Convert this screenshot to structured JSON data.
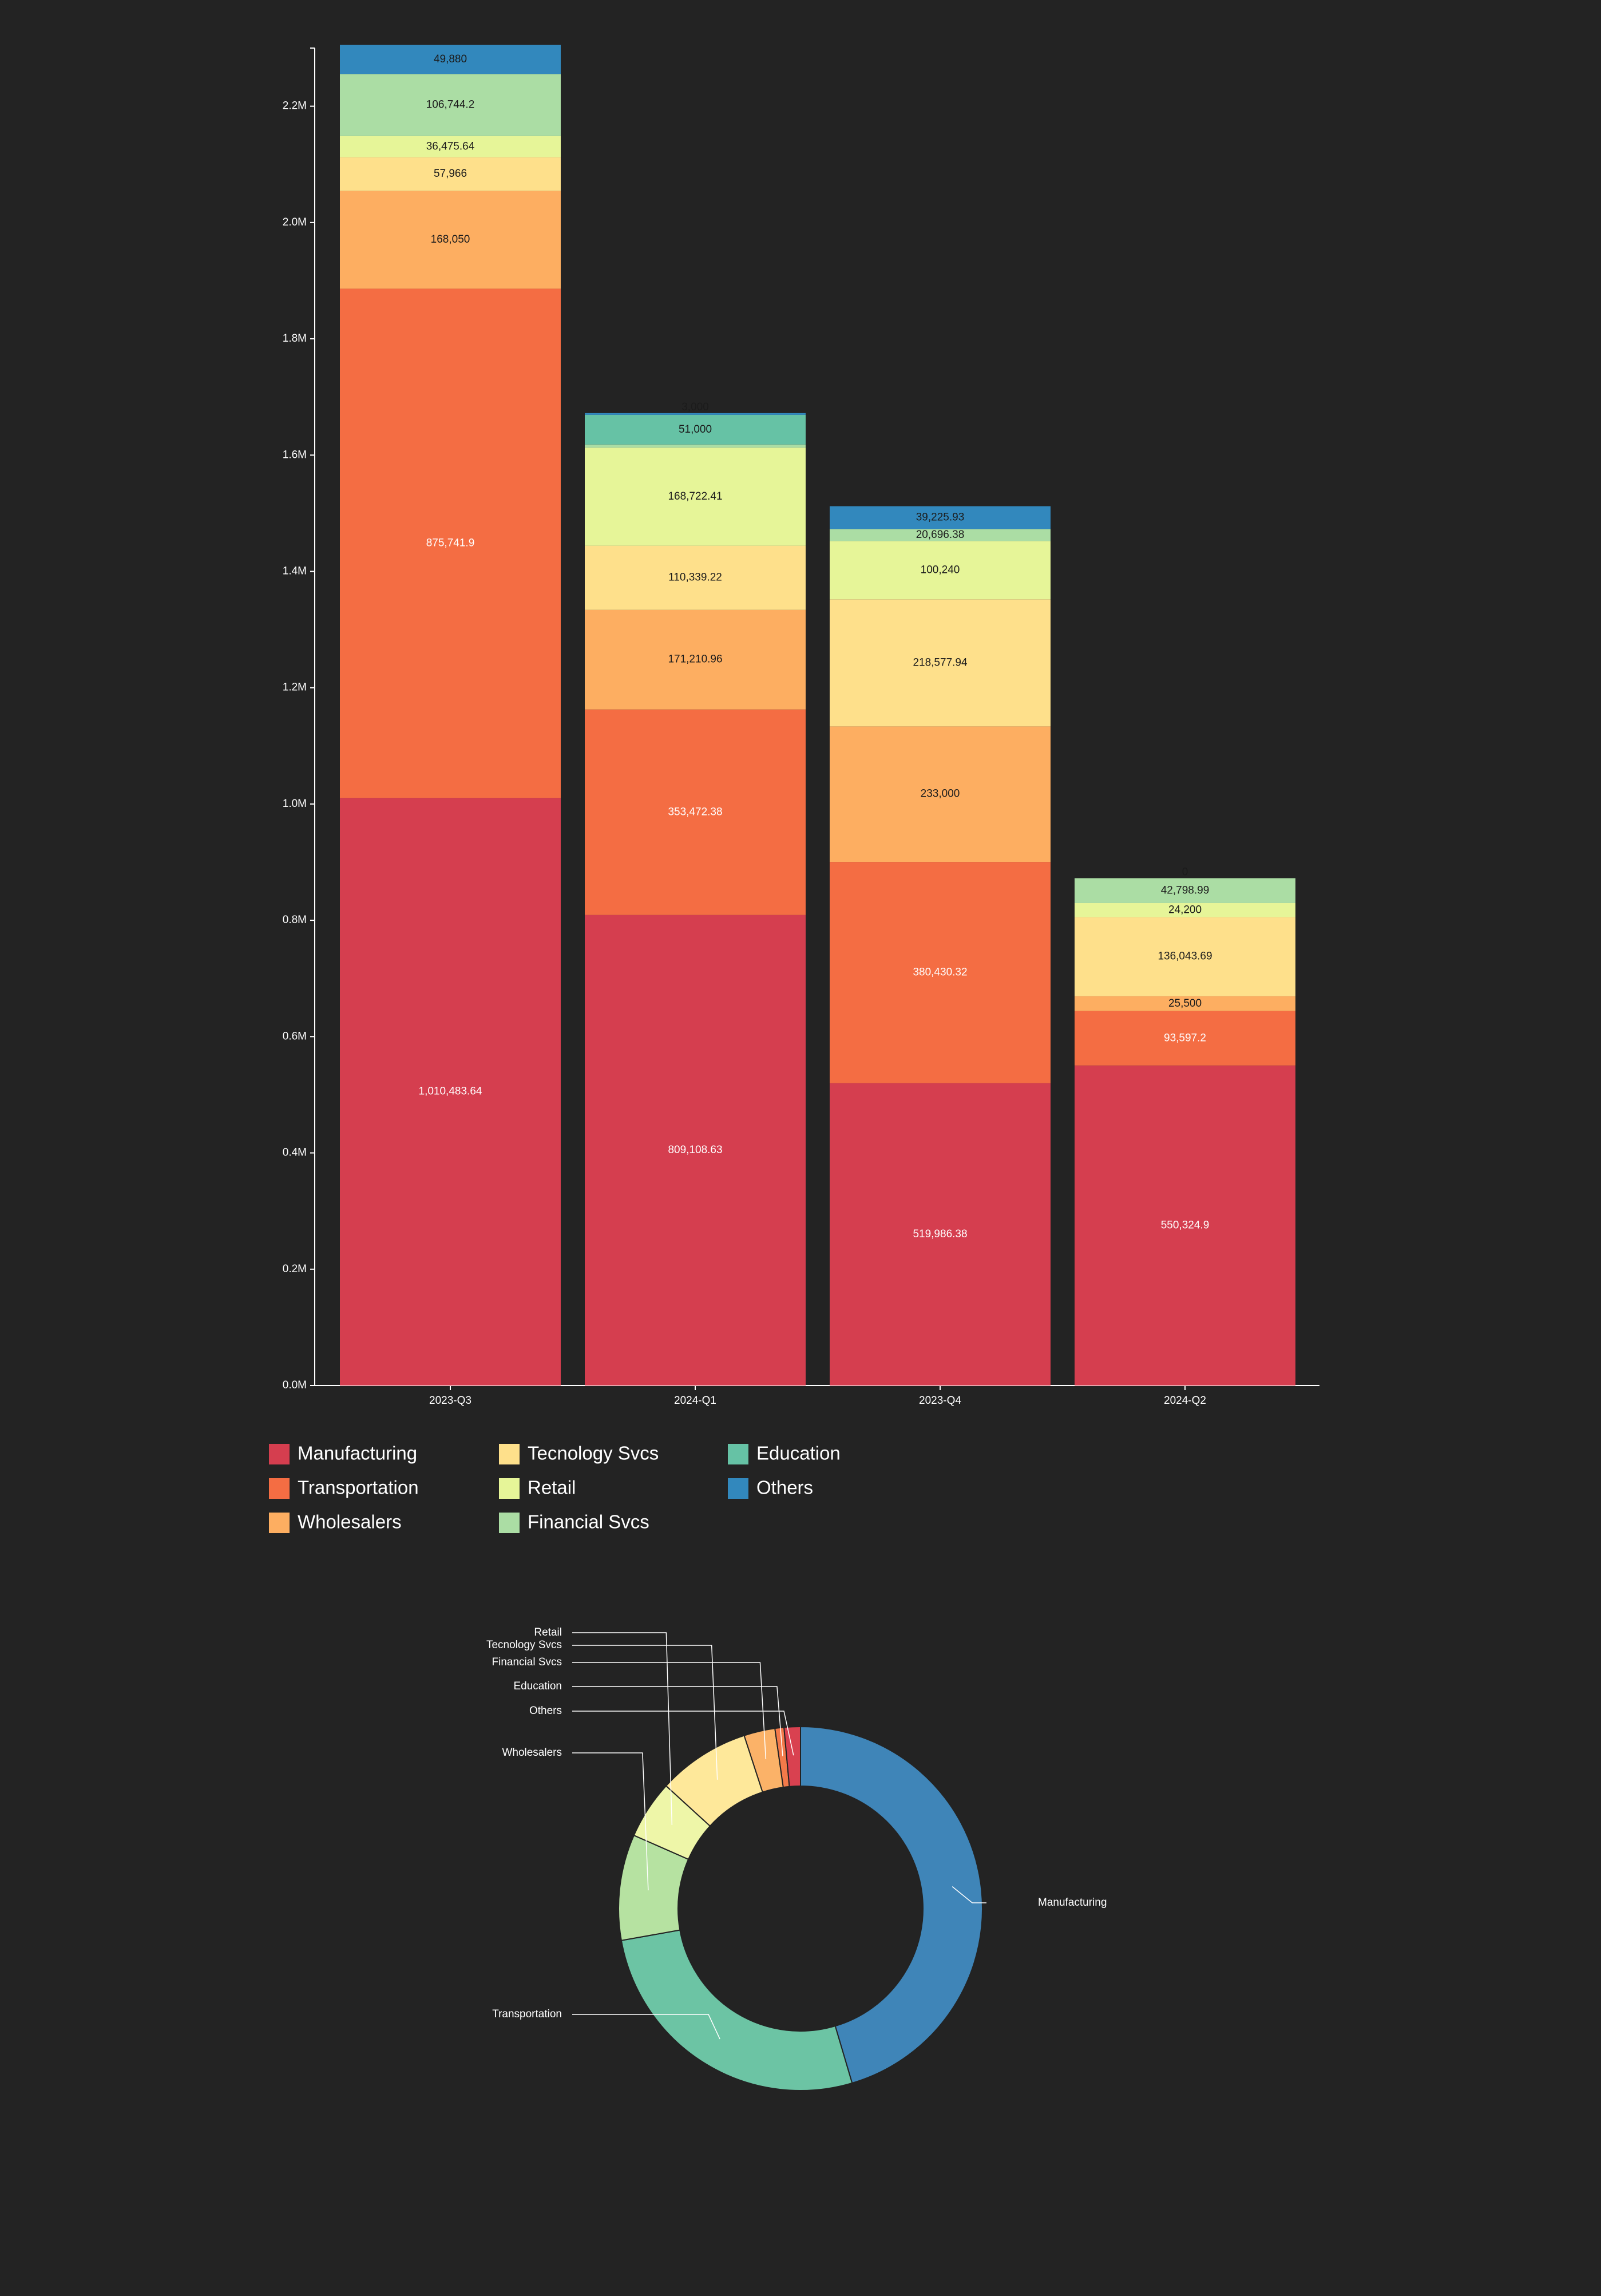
{
  "chart_data": [
    {
      "type": "bar",
      "stacked": true,
      "categories": [
        "2023-Q3",
        "2024-Q1",
        "2023-Q4",
        "2024-Q2"
      ],
      "ylim": [
        0,
        2300000
      ],
      "yticks": [
        "0.0M",
        "0.2M",
        "0.4M",
        "0.6M",
        "0.8M",
        "1.0M",
        "1.2M",
        "1.4M",
        "1.6M",
        "1.8M",
        "2.0M",
        "2.2M"
      ],
      "grid": false,
      "legend_position": "bottom-left",
      "series": [
        {
          "name": "Manufacturing",
          "color": "#d53e4f",
          "values": [
            1010483.64,
            809108.63,
            519986.38,
            550324.9
          ],
          "labels": [
            "1,010,483.64",
            "809,108.63",
            "519,986.38",
            "550,324.9"
          ]
        },
        {
          "name": "Transportation",
          "color": "#f46d43",
          "values": [
            875741.9,
            353472.38,
            380430.32,
            93597.2
          ],
          "labels": [
            "875,741.9",
            "353,472.38",
            "380,430.32",
            "93,597.2"
          ]
        },
        {
          "name": "Wholesalers",
          "color": "#fdae61",
          "values": [
            168050,
            171210.96,
            233000,
            25500
          ],
          "labels": [
            "168,050",
            "171,210.96",
            "233,000",
            "25,500"
          ]
        },
        {
          "name": "Tecnology Svcs",
          "color": "#fee08b",
          "values": [
            57966,
            110339.22,
            218577.94,
            136043.69
          ],
          "labels": [
            "57,966",
            "110,339.22",
            "218,577.94",
            "136,043.69"
          ]
        },
        {
          "name": "Retail",
          "color": "#e6f598",
          "values": [
            36475.64,
            168722.41,
            100240,
            24200
          ],
          "labels": [
            "36,475.64",
            "168,722.41",
            "100,240",
            "24,200"
          ]
        },
        {
          "name": "Financial Svcs",
          "color": "#abdda4",
          "values": [
            106744.2,
            5382.51,
            20696.38,
            42798.99
          ],
          "labels": [
            "106,744.2",
            "5,382.51",
            "20,696.38",
            "42,798.99"
          ]
        },
        {
          "name": "Education",
          "color": "#66c2a5",
          "values": [
            0,
            51000,
            0,
            0
          ],
          "labels": [
            "",
            "51,000",
            "",
            ""
          ]
        },
        {
          "name": "Others",
          "color": "#3288bd",
          "values": [
            49880,
            3000,
            39225.93,
            0
          ],
          "labels": [
            "49,880",
            "3,000",
            "39,225.93",
            "0"
          ]
        }
      ]
    },
    {
      "type": "pie",
      "donut": true,
      "slices": [
        {
          "name": "Manufacturing",
          "value": 2889903.55,
          "color": "#3f85b8"
        },
        {
          "name": "Transportation",
          "value": 1703241.8,
          "color": "#6cc4a4"
        },
        {
          "name": "Wholesalers",
          "value": 597760.96,
          "color": "#b6e2a1"
        },
        {
          "name": "Retail",
          "value": 329638.05,
          "color": "#eef6a8"
        },
        {
          "name": "Tecnology Svcs",
          "value": 522926.85,
          "color": "#fee89a"
        },
        {
          "name": "Financial Svcs",
          "value": 175622.08,
          "color": "#fbb268"
        },
        {
          "name": "Education",
          "value": 51000,
          "color": "#f37a4a"
        },
        {
          "name": "Others",
          "value": 92105.93,
          "color": "#d94150"
        }
      ]
    }
  ],
  "legend": [
    {
      "label": "Manufacturing",
      "color": "#d53e4f"
    },
    {
      "label": "Transportation",
      "color": "#f46d43"
    },
    {
      "label": "Wholesalers",
      "color": "#fdae61"
    },
    {
      "label": "Tecnology Svcs",
      "color": "#fee08b"
    },
    {
      "label": "Retail",
      "color": "#e6f598"
    },
    {
      "label": "Financial Svcs",
      "color": "#abdda4"
    },
    {
      "label": "Education",
      "color": "#66c2a5"
    },
    {
      "label": "Others",
      "color": "#3288bd"
    }
  ]
}
